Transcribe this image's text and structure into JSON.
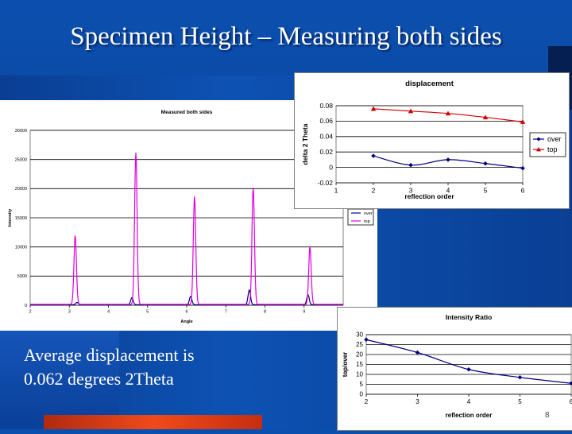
{
  "slide": {
    "title": "Specimen Height – Measuring both sides",
    "text_line1": "Average displacement is",
    "text_line2": "0.062 degrees 2Theta",
    "page_number": "8"
  },
  "chart_data": [
    {
      "type": "line",
      "title": "Measured both sides",
      "xlabel": "Angle",
      "ylabel": "Intensity",
      "xlim": [
        2,
        10
      ],
      "ylim": [
        0,
        30000
      ],
      "x_ticks": [
        "2",
        "3",
        "4",
        "5",
        "6",
        "7",
        "8",
        "9"
      ],
      "y_ticks": [
        "0",
        "5000",
        "10000",
        "15000",
        "20000",
        "25000",
        "30000"
      ],
      "grid": true,
      "legend": "right",
      "series": [
        {
          "name": "over",
          "color": "#000080",
          "baseline": 100,
          "peaks": [
            [
              3.2,
              380
            ],
            [
              4.6,
              1200
            ],
            [
              6.1,
              1400
            ],
            [
              7.6,
              2500
            ],
            [
              9.1,
              1700
            ]
          ]
        },
        {
          "name": "top",
          "color": "#e000e0",
          "baseline": 150,
          "peaks": [
            [
              3.15,
              11800
            ],
            [
              4.7,
              26000
            ],
            [
              6.2,
              18500
            ],
            [
              7.7,
              20000
            ],
            [
              9.15,
              9900
            ]
          ]
        }
      ]
    },
    {
      "type": "line",
      "title": "displacement",
      "xlabel": "reflection order",
      "ylabel": "delta 2 Theta",
      "xlim": [
        1,
        6
      ],
      "ylim": [
        -0.02,
        0.08
      ],
      "x_ticks": [
        "1",
        "2",
        "3",
        "4",
        "5",
        "6"
      ],
      "y_ticks": [
        "-0.02",
        "0",
        "0.02",
        "0.04",
        "0.06",
        "0.08"
      ],
      "grid": true,
      "legend": "right",
      "series": [
        {
          "name": "over",
          "color": "#000080",
          "marker": "diamond",
          "x": [
            2,
            3,
            4,
            5,
            6
          ],
          "y": [
            0.015,
            0.003,
            0.01,
            0.005,
            -0.001
          ]
        },
        {
          "name": "top",
          "color": "#d00000",
          "marker": "triangle",
          "x": [
            2,
            3,
            4,
            5,
            6
          ],
          "y": [
            0.076,
            0.073,
            0.07,
            0.065,
            0.059
          ]
        }
      ]
    },
    {
      "type": "line",
      "title": "Intensity Ratio",
      "xlabel": "reflection order",
      "ylabel": "top/over",
      "xlim": [
        2,
        6
      ],
      "ylim": [
        0,
        30
      ],
      "x_ticks": [
        "2",
        "3",
        "4",
        "5",
        "6"
      ],
      "y_ticks": [
        "0",
        "5",
        "10",
        "15",
        "20",
        "25",
        "30"
      ],
      "grid": true,
      "series": [
        {
          "name": "",
          "color": "#000080",
          "marker": "diamond",
          "x": [
            2,
            3,
            4,
            5,
            6
          ],
          "y": [
            27.5,
            21,
            12.5,
            8.5,
            5.5
          ]
        }
      ]
    }
  ]
}
